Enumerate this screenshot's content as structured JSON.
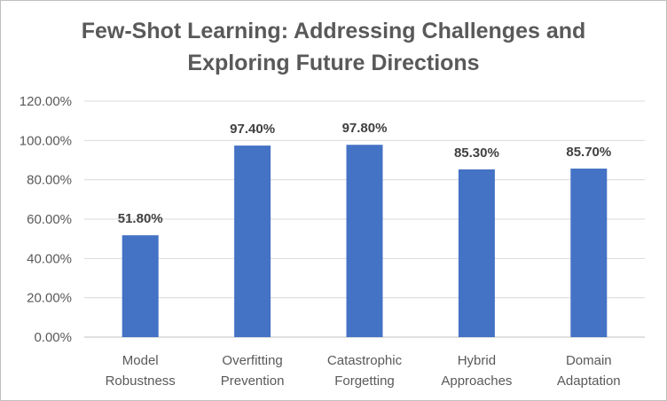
{
  "chart_data": {
    "type": "bar",
    "title_lines": [
      "Few-Shot Learning: Addressing Challenges and",
      "Exploring Future Directions"
    ],
    "categories": [
      [
        "Model",
        "Robustness"
      ],
      [
        "Overfitting",
        "Prevention"
      ],
      [
        "Catastrophic",
        "Forgetting"
      ],
      [
        "Hybrid",
        "Approaches"
      ],
      [
        "Domain",
        "Adaptation"
      ]
    ],
    "values": [
      51.8,
      97.4,
      97.8,
      85.3,
      85.7
    ],
    "data_labels": [
      "51.80%",
      "97.40%",
      "97.80%",
      "85.30%",
      "85.70%"
    ],
    "ylim": [
      0,
      120
    ],
    "yticks": [
      0,
      20,
      40,
      60,
      80,
      100,
      120
    ],
    "ytick_labels": [
      "0.00%",
      "20.00%",
      "40.00%",
      "60.00%",
      "80.00%",
      "100.00%",
      "120.00%"
    ],
    "grid": true,
    "legend": "none",
    "colors": {
      "bar": "#4472c4",
      "grid": "#d9d9d9",
      "axis": "#bfbfbf",
      "text": "#595959"
    }
  }
}
